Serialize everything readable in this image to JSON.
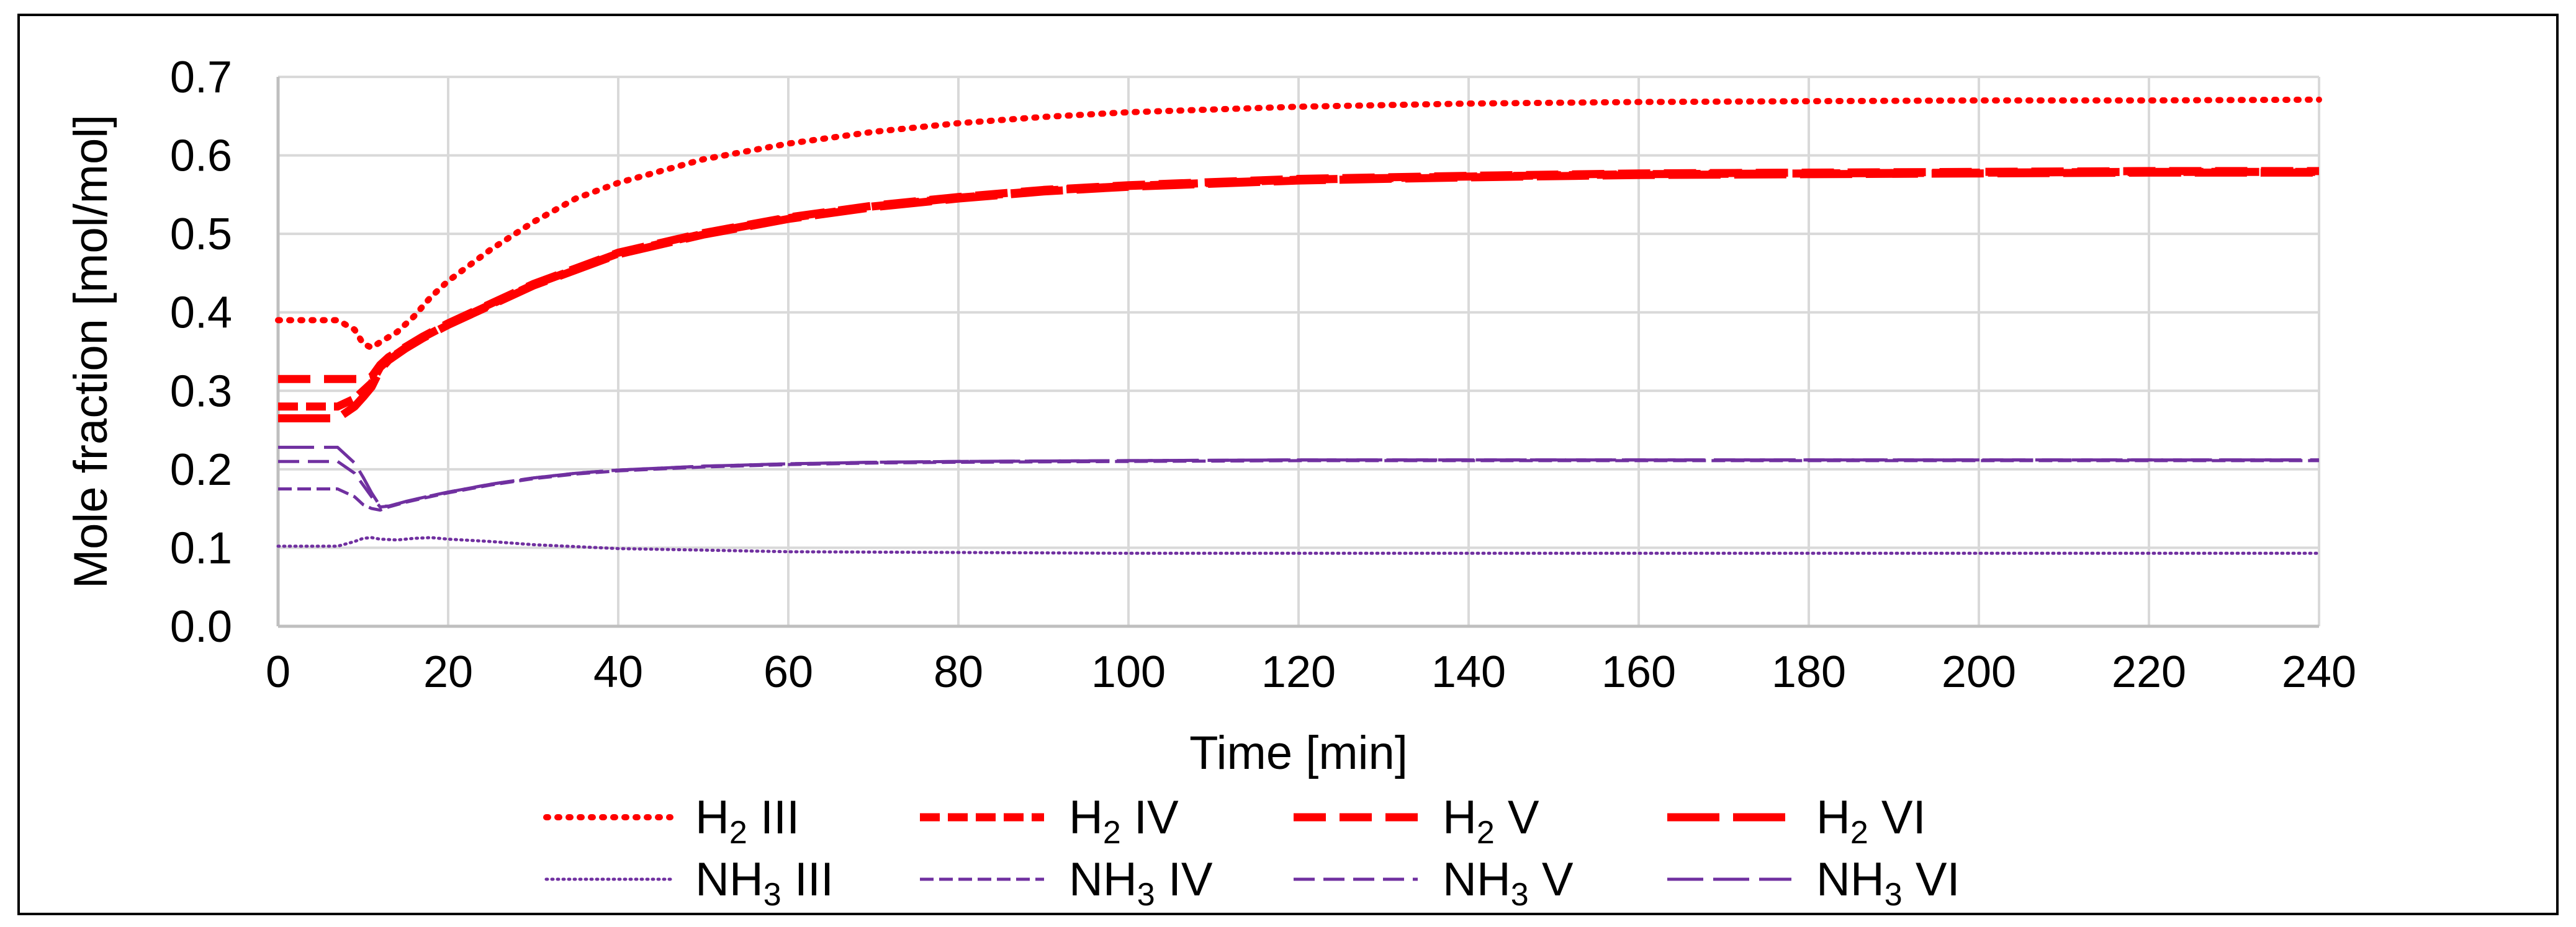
{
  "chart_data": {
    "type": "line",
    "title": "",
    "xlabel": "Time [min]",
    "ylabel": "Mole fraction [mol/mol]",
    "xlim": [
      0,
      240
    ],
    "ylim": [
      0,
      0.7
    ],
    "x_ticks": [
      0,
      20,
      40,
      60,
      80,
      100,
      120,
      140,
      160,
      180,
      200,
      220,
      240
    ],
    "y_ticks": [
      0,
      0.1,
      0.2,
      0.3,
      0.4,
      0.5,
      0.6,
      0.7
    ],
    "x_tick_labels": [
      "0",
      "20",
      "40",
      "60",
      "80",
      "100",
      "120",
      "140",
      "160",
      "180",
      "200",
      "220",
      "240"
    ],
    "y_tick_labels": [
      "0.0",
      "0.1",
      "0.2",
      "0.3",
      "0.4",
      "0.5",
      "0.6",
      "0.7"
    ],
    "grid": true,
    "legend_position": "bottom",
    "series": [
      {
        "name": "H2 III",
        "species": "H",
        "subscript": "2",
        "case": "III",
        "color": "#ff0000",
        "style": "dotted-thick",
        "x": [
          0,
          7,
          9,
          10,
          11,
          12,
          14,
          16,
          18,
          20,
          25,
          30,
          35,
          40,
          50,
          60,
          70,
          80,
          90,
          100,
          120,
          140,
          160,
          180,
          200,
          220,
          240
        ],
        "y": [
          0.39,
          0.39,
          0.378,
          0.36,
          0.355,
          0.362,
          0.375,
          0.395,
          0.42,
          0.44,
          0.48,
          0.515,
          0.545,
          0.565,
          0.595,
          0.615,
          0.63,
          0.641,
          0.649,
          0.655,
          0.662,
          0.666,
          0.668,
          0.669,
          0.67,
          0.67,
          0.671
        ]
      },
      {
        "name": "H2 IV",
        "species": "H",
        "subscript": "2",
        "case": "IV",
        "color": "#ff0000",
        "style": "dash-short-thick",
        "x": [
          0,
          7,
          9,
          10,
          11,
          12,
          13,
          15,
          17,
          20,
          25,
          30,
          35,
          40,
          50,
          60,
          70,
          80,
          90,
          100,
          120,
          140,
          160,
          180,
          200,
          220,
          240
        ],
        "y": [
          0.28,
          0.28,
          0.29,
          0.3,
          0.31,
          0.33,
          0.34,
          0.355,
          0.368,
          0.385,
          0.41,
          0.435,
          0.455,
          0.475,
          0.5,
          0.52,
          0.535,
          0.546,
          0.555,
          0.561,
          0.569,
          0.573,
          0.576,
          0.577,
          0.578,
          0.579,
          0.579
        ]
      },
      {
        "name": "H2 V",
        "species": "H",
        "subscript": "2",
        "case": "V",
        "color": "#ff0000",
        "style": "dash-medium-thick",
        "x": [
          0,
          7,
          9,
          10,
          11,
          12,
          13,
          15,
          17,
          20,
          25,
          30,
          35,
          40,
          50,
          60,
          70,
          80,
          90,
          100,
          120,
          140,
          160,
          180,
          200,
          220,
          240
        ],
        "y": [
          0.315,
          0.315,
          0.315,
          0.315,
          0.318,
          0.333,
          0.343,
          0.356,
          0.369,
          0.386,
          0.411,
          0.436,
          0.456,
          0.476,
          0.501,
          0.521,
          0.536,
          0.547,
          0.556,
          0.562,
          0.57,
          0.574,
          0.577,
          0.578,
          0.579,
          0.58,
          0.58
        ]
      },
      {
        "name": "H2 VI",
        "species": "H",
        "subscript": "2",
        "case": "VI",
        "color": "#ff0000",
        "style": "dash-long-thick",
        "x": [
          0,
          7,
          9,
          10,
          11,
          12,
          13,
          15,
          17,
          20,
          25,
          30,
          35,
          40,
          50,
          60,
          70,
          80,
          90,
          100,
          120,
          140,
          160,
          180,
          200,
          220,
          240
        ],
        "y": [
          0.265,
          0.265,
          0.28,
          0.292,
          0.305,
          0.327,
          0.339,
          0.354,
          0.367,
          0.384,
          0.409,
          0.434,
          0.454,
          0.474,
          0.499,
          0.519,
          0.534,
          0.545,
          0.554,
          0.56,
          0.568,
          0.572,
          0.575,
          0.576,
          0.577,
          0.578,
          0.578
        ]
      },
      {
        "name": "NH3 III",
        "species": "NH",
        "subscript": "3",
        "case": "III",
        "color": "#7030a0",
        "style": "dotted-thin",
        "x": [
          0,
          7,
          9,
          10,
          11,
          12,
          14,
          16,
          18,
          20,
          25,
          30,
          40,
          50,
          60,
          80,
          100,
          120,
          140,
          160,
          180,
          200,
          220,
          240
        ],
        "y": [
          0.102,
          0.102,
          0.108,
          0.112,
          0.113,
          0.111,
          0.11,
          0.112,
          0.113,
          0.111,
          0.108,
          0.104,
          0.099,
          0.097,
          0.095,
          0.094,
          0.093,
          0.093,
          0.093,
          0.093,
          0.093,
          0.093,
          0.093,
          0.093
        ]
      },
      {
        "name": "NH3 IV",
        "species": "NH",
        "subscript": "3",
        "case": "IV",
        "color": "#7030a0",
        "style": "dash-short-thin",
        "x": [
          0,
          7,
          9,
          10,
          11,
          12,
          13,
          15,
          17,
          20,
          25,
          30,
          35,
          40,
          50,
          60,
          70,
          80,
          100,
          120,
          140,
          160,
          180,
          200,
          220,
          240
        ],
        "y": [
          0.175,
          0.175,
          0.165,
          0.155,
          0.15,
          0.148,
          0.152,
          0.158,
          0.163,
          0.17,
          0.18,
          0.188,
          0.194,
          0.198,
          0.203,
          0.206,
          0.208,
          0.209,
          0.21,
          0.211,
          0.211,
          0.211,
          0.211,
          0.211,
          0.211,
          0.211
        ]
      },
      {
        "name": "NH3 V",
        "species": "NH",
        "subscript": "3",
        "case": "V",
        "color": "#7030a0",
        "style": "dash-medium-thin",
        "x": [
          0,
          7,
          9,
          10,
          11,
          12,
          13,
          15,
          17,
          20,
          25,
          30,
          35,
          40,
          50,
          60,
          70,
          80,
          100,
          120,
          140,
          160,
          180,
          200,
          220,
          240
        ],
        "y": [
          0.21,
          0.21,
          0.195,
          0.18,
          0.165,
          0.152,
          0.153,
          0.159,
          0.164,
          0.171,
          0.181,
          0.189,
          0.195,
          0.199,
          0.204,
          0.207,
          0.209,
          0.21,
          0.211,
          0.212,
          0.212,
          0.212,
          0.212,
          0.212,
          0.212,
          0.212
        ]
      },
      {
        "name": "NH3 VI",
        "species": "NH",
        "subscript": "3",
        "case": "VI",
        "color": "#7030a0",
        "style": "dash-long-thin",
        "x": [
          0,
          7,
          9,
          10,
          11,
          12,
          13,
          15,
          17,
          20,
          25,
          30,
          35,
          40,
          50,
          60,
          70,
          80,
          100,
          120,
          140,
          160,
          180,
          200,
          220,
          240
        ],
        "y": [
          0.228,
          0.228,
          0.208,
          0.19,
          0.17,
          0.153,
          0.153,
          0.159,
          0.164,
          0.171,
          0.181,
          0.189,
          0.195,
          0.199,
          0.204,
          0.207,
          0.209,
          0.21,
          0.211,
          0.212,
          0.212,
          0.212,
          0.212,
          0.212,
          0.212,
          0.212
        ]
      }
    ]
  }
}
